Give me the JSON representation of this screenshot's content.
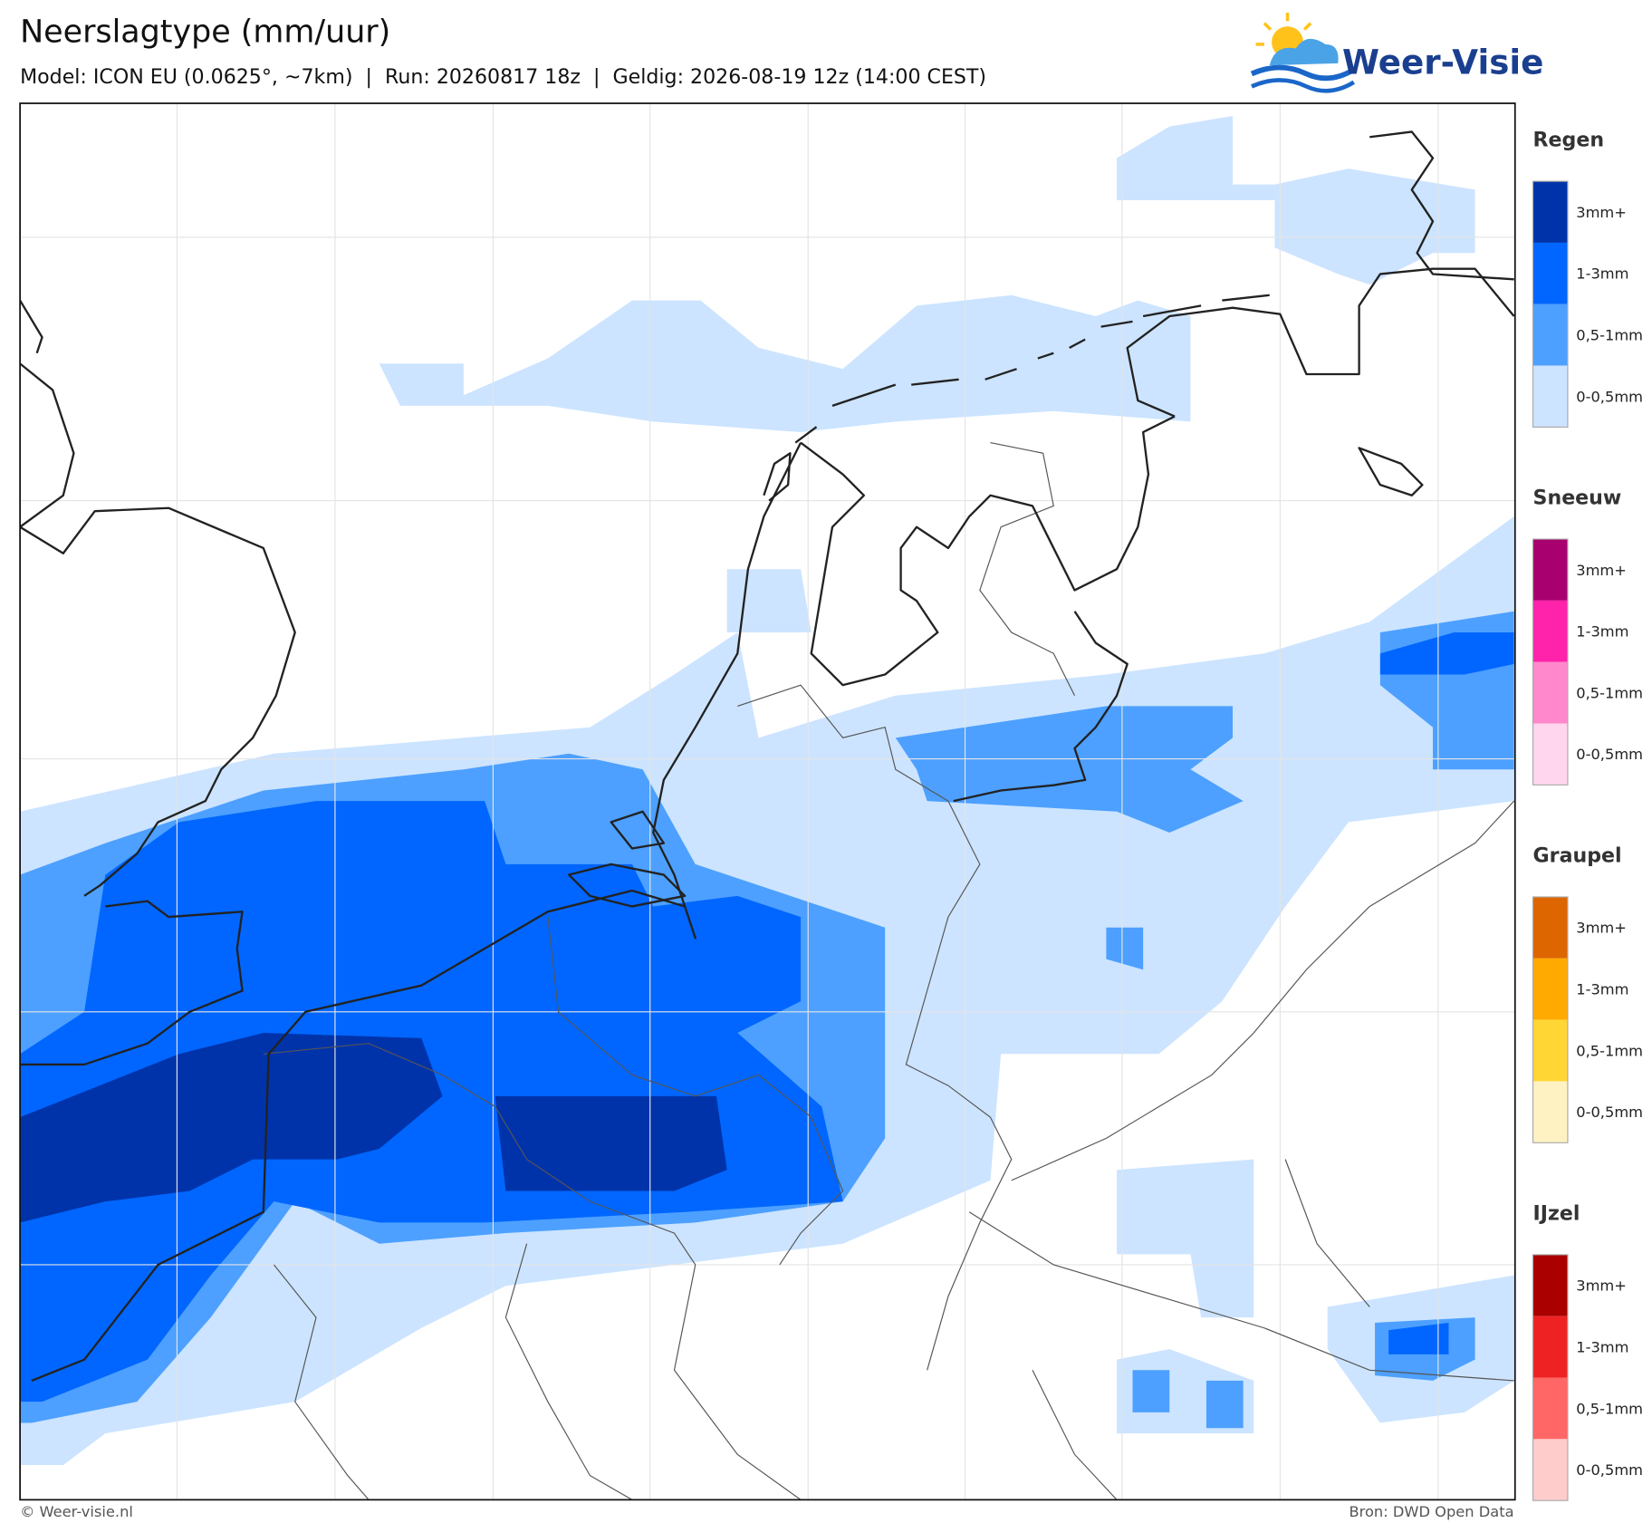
{
  "header": {
    "title": "Neerslagtype (mm/uur)",
    "subtitle": "Model: ICON EU (0.0625°, ~7km)  |  Run: 20260817 18z  |  Geldig: 2026-08-19 12z (14:00 CEST)"
  },
  "logo": "Weer-Visie",
  "legend": [
    {
      "title": "Regen",
      "levels": [
        {
          "label": "3mm+",
          "color": "#0033aa"
        },
        {
          "label": "1-3mm",
          "color": "#0066ff"
        },
        {
          "label": "0,5-1mm",
          "color": "#4da0ff"
        },
        {
          "label": "0-0,5mm",
          "color": "#cce4ff"
        }
      ]
    },
    {
      "title": "Sneeuw",
      "levels": [
        {
          "label": "3mm+",
          "color": "#a8006e"
        },
        {
          "label": "1-3mm",
          "color": "#ff22aa"
        },
        {
          "label": "0,5-1mm",
          "color": "#ff88cc"
        },
        {
          "label": "0-0,5mm",
          "color": "#ffd6ee"
        }
      ]
    },
    {
      "title": "Graupel",
      "levels": [
        {
          "label": "3mm+",
          "color": "#dd6600"
        },
        {
          "label": "1-3mm",
          "color": "#ffaa00"
        },
        {
          "label": "0,5-1mm",
          "color": "#ffd633"
        },
        {
          "label": "0-0,5mm",
          "color": "#fff2c2"
        }
      ]
    },
    {
      "title": "IJzel",
      "levels": [
        {
          "label": "3mm+",
          "color": "#aa0000"
        },
        {
          "label": "1-3mm",
          "color": "#ee2222"
        },
        {
          "label": "0,5-1mm",
          "color": "#ff6666"
        },
        {
          "label": "0-0,5mm",
          "color": "#ffcccc"
        }
      ]
    }
  ],
  "footer": {
    "left": "© Weer-visie.nl",
    "right": "Bron: DWD Open Data"
  }
}
